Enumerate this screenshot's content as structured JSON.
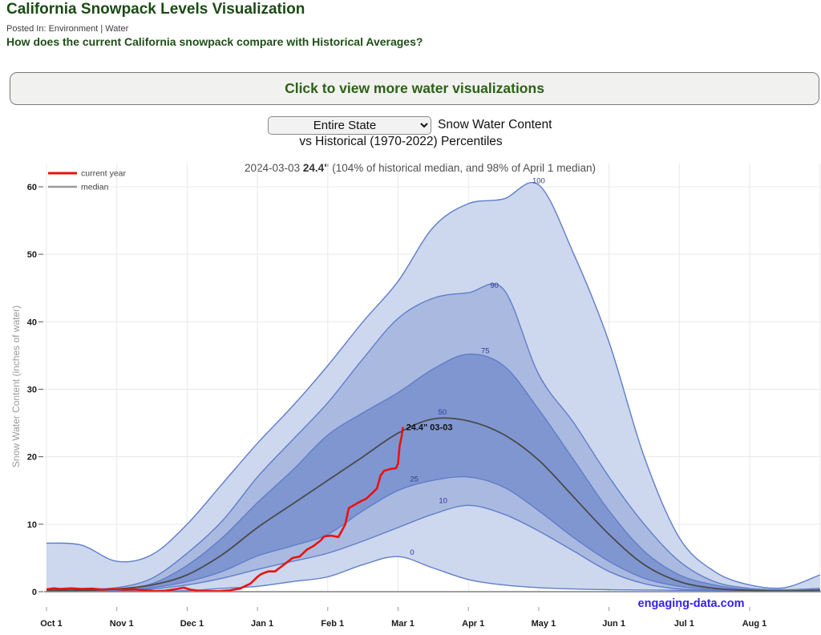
{
  "page": {
    "title": "California Snowpack Levels Visualization",
    "posted_in": "Posted In: Environment | Water",
    "question": "How does the current California snowpack compare with Historical Averages?",
    "banner_button": "Click to view more water visualizations"
  },
  "controls": {
    "region_select": {
      "value": "Entire State"
    },
    "heading_line1": "Snow Water Content",
    "heading_line2": "vs Historical (1970-2022) Percentiles"
  },
  "status_line": {
    "date": "2024-03-03",
    "value": "24.4\"",
    "comparison": " (104% of historical median, and 98% of April 1 median)"
  },
  "legend": [
    {
      "label": "current year",
      "color": "#e8130c"
    },
    {
      "label": "median",
      "color": "#9a9a9a"
    }
  ],
  "axes": {
    "y_title": "Snow Water Content (inches of water)",
    "y_ticks": [
      0,
      10,
      20,
      30,
      40,
      50,
      60
    ],
    "x_ticks": [
      "Oct 1",
      "Nov 1",
      "Dec 1",
      "Jan 1",
      "Feb 1",
      "Mar 1",
      "Apr 1",
      "May 1",
      "Jun 1",
      "Jul 1",
      "Aug 1"
    ]
  },
  "annotation": "24.4\" 03-03",
  "watermark": "engaging-data.com",
  "colors": {
    "band_outer": "#cdd7ee",
    "band_mid": "#aab9e0",
    "band_inner": "#8096d1",
    "percentile_stroke": "#5f7ec9",
    "median_stroke": "#4a4a4a",
    "current_year": "#e8130c",
    "gridline": "#e9e9e9",
    "baseline": "#808080",
    "axis_text": "#1a1a1a",
    "percentile_label": "#2e3d94",
    "watermark_color": "#3322ee",
    "accent_green": "#1f4e18"
  },
  "chart_data": {
    "type": "area",
    "title": "2024-03-03 24.4\" (104% of historical median, and 98% of April 1 median)",
    "xlabel_unit": "months since Oct 1 (step 0.5)",
    "ylabel": "Snow Water Content (inches of water)",
    "ylim": [
      0,
      62
    ],
    "x_step": 0.5,
    "grid": true,
    "legend_position": "top-left",
    "series": [
      {
        "name": "p100",
        "values": [
          7.2,
          6.9,
          4.5,
          5.5,
          10,
          16,
          22,
          27.5,
          33.5,
          40,
          46,
          54,
          57.5,
          58.2,
          60.3,
          50,
          37,
          20,
          8,
          3,
          1,
          0.6,
          2.5
        ]
      },
      {
        "name": "p90",
        "values": [
          0.4,
          0.4,
          0.6,
          2,
          5.7,
          10.5,
          17,
          22.5,
          28,
          34.5,
          40.5,
          43.5,
          44.3,
          44.8,
          32.2,
          25,
          17,
          10,
          4.5,
          1.5,
          0.5,
          0.3,
          0.5
        ]
      },
      {
        "name": "p75",
        "values": [
          0.2,
          0.2,
          0.4,
          1.2,
          3.9,
          8,
          13.2,
          18,
          23.2,
          26.5,
          29.5,
          33,
          35.2,
          33.5,
          27,
          19.5,
          12,
          6,
          2.5,
          1,
          0.3,
          0.2,
          0.3
        ]
      },
      {
        "name": "p50",
        "values": [
          0.2,
          0.2,
          0.4,
          1,
          2.5,
          5.5,
          9.5,
          13,
          16.5,
          20,
          23.5,
          25.6,
          25.3,
          23.3,
          19.5,
          14,
          8.5,
          4,
          1.5,
          0.5,
          0.2,
          0.1,
          0.2
        ]
      },
      {
        "name": "p25",
        "values": [
          0.1,
          0.1,
          0.2,
          0.6,
          1.5,
          3,
          5.3,
          6.8,
          8.5,
          12,
          15,
          16.5,
          17,
          15.5,
          12,
          8,
          4.5,
          2,
          0.8,
          0.3,
          0.1,
          0.1,
          0.1
        ]
      },
      {
        "name": "p10",
        "values": [
          0.1,
          0.1,
          0.1,
          0.4,
          1,
          2,
          3.3,
          4.5,
          5.7,
          7.5,
          9.5,
          11.5,
          12.8,
          11.5,
          9,
          6,
          3,
          1.2,
          0.4,
          0.2,
          0.1,
          0.05,
          0.1
        ]
      },
      {
        "name": "p0",
        "values": [
          0.05,
          0.05,
          0.05,
          0.1,
          0.15,
          0.5,
          0.8,
          1.5,
          2.2,
          4,
          5.2,
          3.5,
          1.8,
          1,
          0.6,
          0.4,
          0.3,
          0.25,
          0.2,
          0.15,
          0.1,
          0.1,
          0.2
        ]
      }
    ],
    "current_year": {
      "name": "current year",
      "last_date": "2024-03-03",
      "last_value": 24.4,
      "points": [
        [
          0,
          0.35
        ],
        [
          0.1,
          0.5
        ],
        [
          0.2,
          0.4
        ],
        [
          0.35,
          0.5
        ],
        [
          0.5,
          0.4
        ],
        [
          0.65,
          0.45
        ],
        [
          0.8,
          0.3
        ],
        [
          0.95,
          0.4
        ],
        [
          1.1,
          0.3
        ],
        [
          1.25,
          0.35
        ],
        [
          1.4,
          0.2
        ],
        [
          1.55,
          0.1
        ],
        [
          1.7,
          0.15
        ],
        [
          1.85,
          0.4
        ],
        [
          1.95,
          0.6
        ],
        [
          2.05,
          0.3
        ],
        [
          2.2,
          0.1
        ],
        [
          2.45,
          0.1
        ],
        [
          2.6,
          0.2
        ],
        [
          2.75,
          0.45
        ],
        [
          2.9,
          1.2
        ],
        [
          3.0,
          2.2
        ],
        [
          3.05,
          2.6
        ],
        [
          3.15,
          3.0
        ],
        [
          3.25,
          3.0
        ],
        [
          3.35,
          3.8
        ],
        [
          3.45,
          4.6
        ],
        [
          3.5,
          5.0
        ],
        [
          3.6,
          5.2
        ],
        [
          3.7,
          6.2
        ],
        [
          3.8,
          6.8
        ],
        [
          3.9,
          7.6
        ],
        [
          3.95,
          8.2
        ],
        [
          4.05,
          8.3
        ],
        [
          4.15,
          8.1
        ],
        [
          4.2,
          9.0
        ],
        [
          4.25,
          10.0
        ],
        [
          4.3,
          12.4
        ],
        [
          4.4,
          13.0
        ],
        [
          4.45,
          13.3
        ],
        [
          4.55,
          13.8
        ],
        [
          4.62,
          14.5
        ],
        [
          4.7,
          15.3
        ],
        [
          4.75,
          17.2
        ],
        [
          4.8,
          17.9
        ],
        [
          4.9,
          18.2
        ],
        [
          4.97,
          18.3
        ],
        [
          5.0,
          19.0
        ],
        [
          5.02,
          21.5
        ],
        [
          5.05,
          23.0
        ],
        [
          5.07,
          24.4
        ]
      ]
    },
    "percentile_labels": [
      {
        "text": "100",
        "m": 7.0,
        "v": 60.9
      },
      {
        "text": "90",
        "m": 6.37,
        "v": 45.4
      },
      {
        "text": "75",
        "m": 6.24,
        "v": 35.7
      },
      {
        "text": "50",
        "m": 5.63,
        "v": 26.6
      },
      {
        "text": "25",
        "m": 5.23,
        "v": 16.7
      },
      {
        "text": "10",
        "m": 5.64,
        "v": 13.5
      },
      {
        "text": "0",
        "m": 5.2,
        "v": 5.8
      }
    ]
  }
}
